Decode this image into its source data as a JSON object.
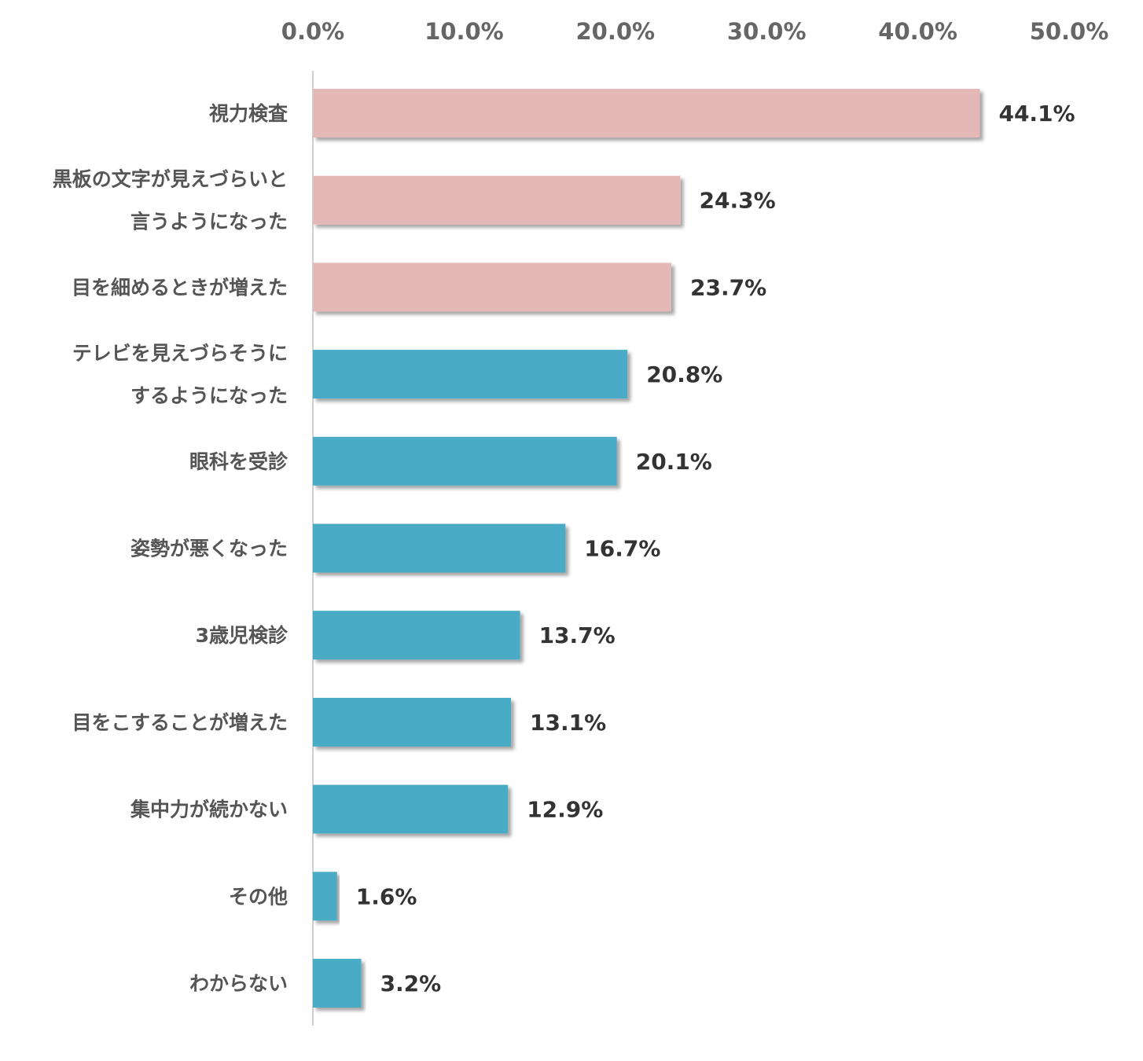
{
  "chart_data": {
    "type": "bar",
    "orientation": "horizontal",
    "x_ticks": [
      "0.0%",
      "10.0%",
      "20.0%",
      "30.0%",
      "40.0%",
      "50.0%"
    ],
    "xlim": [
      0,
      50
    ],
    "grid": false,
    "categories": [
      [
        "視力検査"
      ],
      [
        "黒板の文字が見えづらいと",
        "言うようになった"
      ],
      [
        "目を細めるときが増えた"
      ],
      [
        "テレビを見えづらそうに",
        "するようになった"
      ],
      [
        "眼科を受診"
      ],
      [
        "姿勢が悪くなった"
      ],
      [
        "3歳児検診"
      ],
      [
        "目をこすることが増えた"
      ],
      [
        "集中力が続かない"
      ],
      [
        "その他"
      ],
      [
        "わからない"
      ]
    ],
    "values": [
      44.1,
      24.3,
      23.7,
      20.8,
      20.1,
      16.7,
      13.7,
      13.1,
      12.9,
      1.6,
      3.2
    ],
    "value_labels": [
      "44.1%",
      "24.3%",
      "23.7%",
      "20.8%",
      "20.1%",
      "16.7%",
      "13.7%",
      "13.1%",
      "12.9%",
      "1.6%",
      "3.2%"
    ],
    "bar_colors": [
      "#e5b8b8",
      "#e5b8b8",
      "#e5b8b8",
      "#4aabc6",
      "#4aabc6",
      "#4aabc6",
      "#4aabc6",
      "#4aabc6",
      "#4aabc6",
      "#4aabc6",
      "#4aabc6"
    ],
    "axis_line_color": "#d0d0d0"
  }
}
